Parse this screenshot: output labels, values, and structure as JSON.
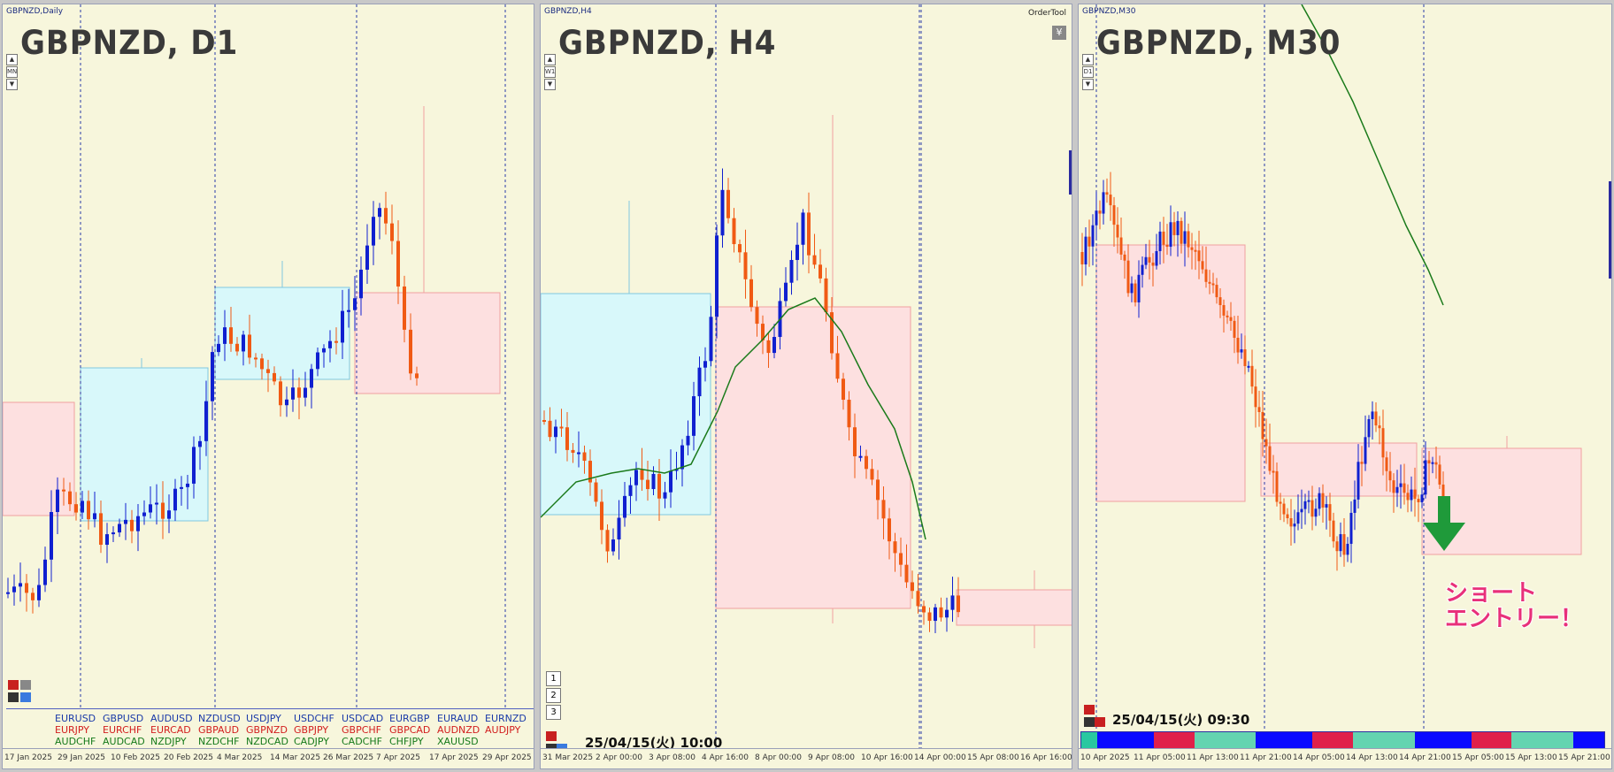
{
  "panels": [
    {
      "id": "d1",
      "small_title": "GBPNZD,Daily",
      "big_title": "GBPNZD, D1",
      "tf_label": "MN",
      "x_labels": [
        "17 Jan 2025",
        "29 Jan 2025",
        "10 Feb 2025",
        "20 Feb 2025",
        "4 Mar 2025",
        "14 Mar 2025",
        "26 Mar 2025",
        "7 Apr 2025",
        "17 Apr 2025",
        "29 Apr 2025"
      ]
    },
    {
      "id": "h4",
      "small_title": "GBPNZD,H4",
      "big_title": "GBPNZD, H4",
      "tf_label": "W1",
      "order_tool": "OrderTool",
      "yen_icon": "¥",
      "timestamp": "25/04/15(火) 10:00",
      "number_buttons": [
        "1",
        "2",
        "3"
      ],
      "x_labels": [
        "31 Mar 2025",
        "2 Apr 00:00",
        "3 Apr 08:00",
        "4 Apr 16:00",
        "8 Apr 00:00",
        "9 Apr 08:00",
        "10 Apr 16:00",
        "14 Apr 00:00",
        "15 Apr 08:00",
        "16 Apr 16:00"
      ]
    },
    {
      "id": "m30",
      "small_title": "GBPNZD,M30",
      "big_title": "GBPNZD, M30",
      "tf_label": "D1",
      "timestamp": "25/04/15(火) 09:30",
      "entry_text_line1": "ショート",
      "entry_text_line2": "エントリー！",
      "x_labels": [
        "10 Apr 2025",
        "11 Apr 05:00",
        "11 Apr 13:00",
        "11 Apr 21:00",
        "14 Apr 05:00",
        "14 Apr 13:00",
        "14 Apr 21:00",
        "15 Apr 05:00",
        "15 Apr 13:00",
        "15 Apr 21:00"
      ],
      "color_bar": [
        "#28c8a0",
        "#0a0aff",
        "#e0204a",
        "#64d4b0",
        "#0a0aff",
        "#e0204a",
        "#64d4b0",
        "#0a0aff",
        "#e0204a",
        "#64d4b0",
        "#0a0aff"
      ]
    }
  ],
  "pair_grid": {
    "row1": [
      "EURUSD",
      "GBPUSD",
      "AUDUSD",
      "NZDUSD",
      "USDJPY",
      "USDCHF",
      "USDCAD",
      "EURGBP",
      "EURAUD",
      "EURNZD"
    ],
    "row2": [
      "EURJPY",
      "EURCHF",
      "EURCAD",
      "GBPAUD",
      "GBPNZD",
      "GBPJPY",
      "GBPCHF",
      "GBPCAD",
      "AUDNZD",
      "AUDJPY"
    ],
    "row3": [
      "AUDCHF",
      "AUDCAD",
      "NZDJPY",
      "NZDCHF",
      "NZDCAD",
      "CADJPY",
      "CADCHF",
      "CHFJPY",
      "XAUUSD"
    ]
  },
  "colors": {
    "bull": "#1020d0",
    "bear": "#f05a14",
    "ma": "#1a7a1a",
    "box_blue": "#d8f8fa",
    "box_pink": "#fde0e0",
    "arrow": "#1f9a3a"
  }
}
